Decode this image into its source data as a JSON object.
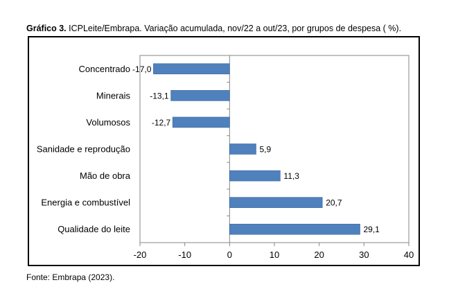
{
  "caption": {
    "label": "Gráfico 3.",
    "text": " ICPLeite/Embrapa. Variação acumulada, nov/22 a out/23, por grupos de despesa ( %)."
  },
  "source": "Fonte: Embrapa (2023).",
  "colors": {
    "bar": "#4f81bd",
    "bar_edge": "#3a64a0",
    "axis": "#868686"
  },
  "chart_data": {
    "type": "bar",
    "orientation": "horizontal",
    "categories": [
      "Concentrado",
      "Minerais",
      "Volumosos",
      "Sanidade e reprodução",
      "Mão de obra",
      "Energia e combustível",
      "Qualidade do leite"
    ],
    "values": [
      -17.0,
      -13.1,
      -12.7,
      5.9,
      11.3,
      20.7,
      29.1
    ],
    "data_labels": [
      "-17,0",
      "-13,1",
      "-12,7",
      "5,9",
      "11,3",
      "20,7",
      "29,1"
    ],
    "xlim": [
      -20,
      40
    ],
    "xticks": [
      -20,
      -10,
      0,
      10,
      20,
      30,
      40
    ],
    "xtick_labels": [
      "-20",
      "-10",
      "0",
      "10",
      "20",
      "30",
      "40"
    ],
    "grid": false,
    "title": "",
    "xlabel": "",
    "ylabel": ""
  }
}
